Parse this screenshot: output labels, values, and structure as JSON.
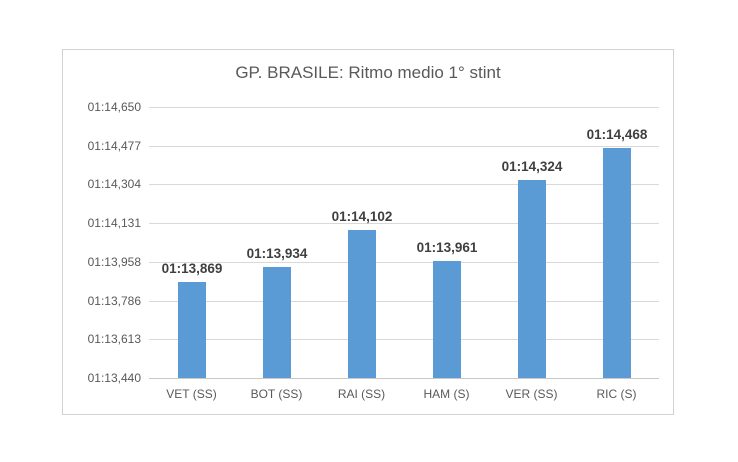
{
  "chart_data": {
    "type": "bar",
    "title": "GP. BRASILE: Ritmo medio 1° stint",
    "categories": [
      "VET (SS)",
      "BOT (SS)",
      "RAI (SS)",
      "HAM (S)",
      "VER (SS)",
      "RIC (S)"
    ],
    "series": [
      {
        "name": "Ritmo medio 1 stint",
        "values_seconds": [
          73.869,
          73.934,
          74.102,
          73.961,
          74.324,
          74.468
        ],
        "data_labels": [
          "01:13,869",
          "01:13,934",
          "01:14,102",
          "01:13,961",
          "01:14,324",
          "01:14,468"
        ]
      }
    ],
    "y_axis": {
      "min_seconds": 73.44,
      "max_seconds": 74.65,
      "tick_seconds": [
        73.44,
        73.613,
        73.786,
        73.958,
        74.131,
        74.304,
        74.477,
        74.65
      ],
      "tick_labels": [
        "01:13,440",
        "01:13,613",
        "01:13,786",
        "01:13,958",
        "01:14,131",
        "01:14,304",
        "01:14,477",
        "01:14,650"
      ]
    },
    "xlabel": "",
    "ylabel": "",
    "grid": "on",
    "legend": "off",
    "colors": {
      "bar": "#5b9bd5",
      "gridline": "#d9d9d9",
      "axis_text": "#595959",
      "data_label": "#3f3f3f",
      "title": "#595959",
      "frame_border": "#d2d2d2"
    }
  }
}
